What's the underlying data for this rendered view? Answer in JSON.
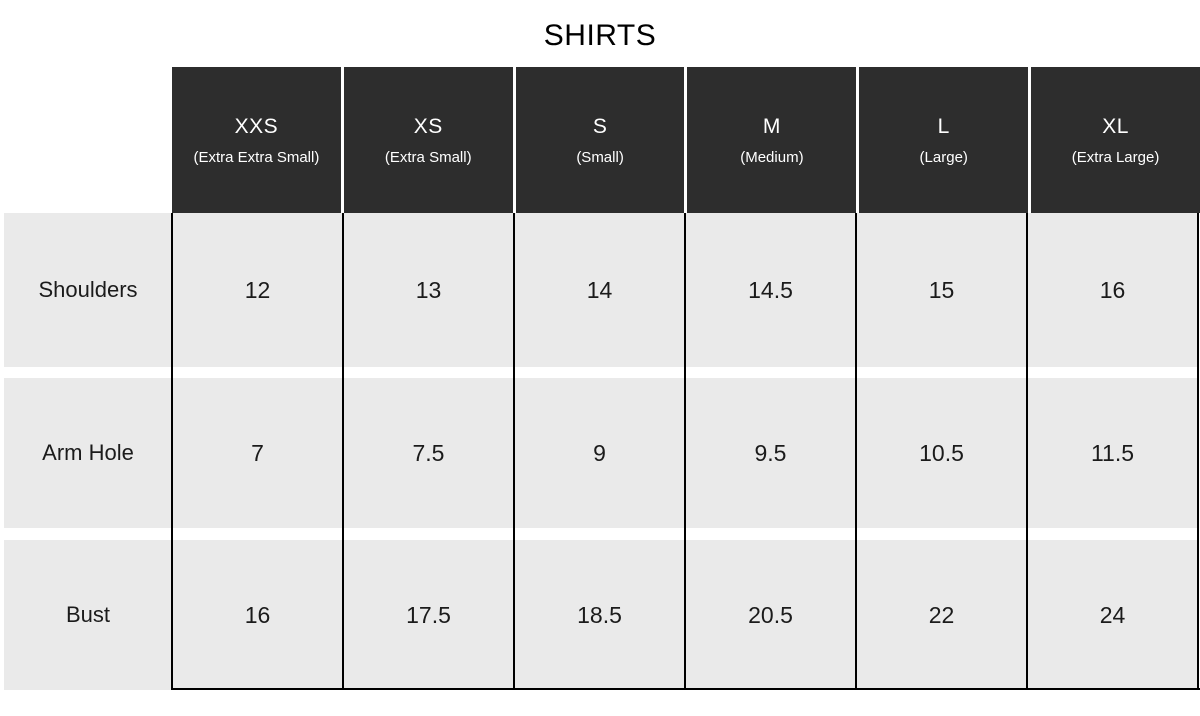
{
  "title": "SHIRTS",
  "colors": {
    "header_bg": "#2d2d2d",
    "header_text": "#ffffff",
    "cell_bg": "#eaeaea",
    "body_text": "#1b1b1b",
    "border": "#000000",
    "page_bg": "#ffffff"
  },
  "chart_data": {
    "type": "table",
    "title": "SHIRTS",
    "columns": [
      {
        "abbrev": "XXS",
        "name": "(Extra Extra Small)"
      },
      {
        "abbrev": "XS",
        "name": "(Extra Small)"
      },
      {
        "abbrev": "S",
        "name": "(Small)"
      },
      {
        "abbrev": "M",
        "name": "(Medium)"
      },
      {
        "abbrev": "L",
        "name": "(Large)"
      },
      {
        "abbrev": "XL",
        "name": "(Extra Large)"
      }
    ],
    "rows": [
      {
        "label": "Shoulders",
        "values": [
          "12",
          "13",
          "14",
          "14.5",
          "15",
          "16"
        ]
      },
      {
        "label": "Arm Hole",
        "values": [
          "7",
          "7.5",
          "9",
          "9.5",
          "10.5",
          "11.5"
        ]
      },
      {
        "label": "Bust",
        "values": [
          "16",
          "17.5",
          "18.5",
          "20.5",
          "22",
          "24"
        ]
      }
    ]
  }
}
